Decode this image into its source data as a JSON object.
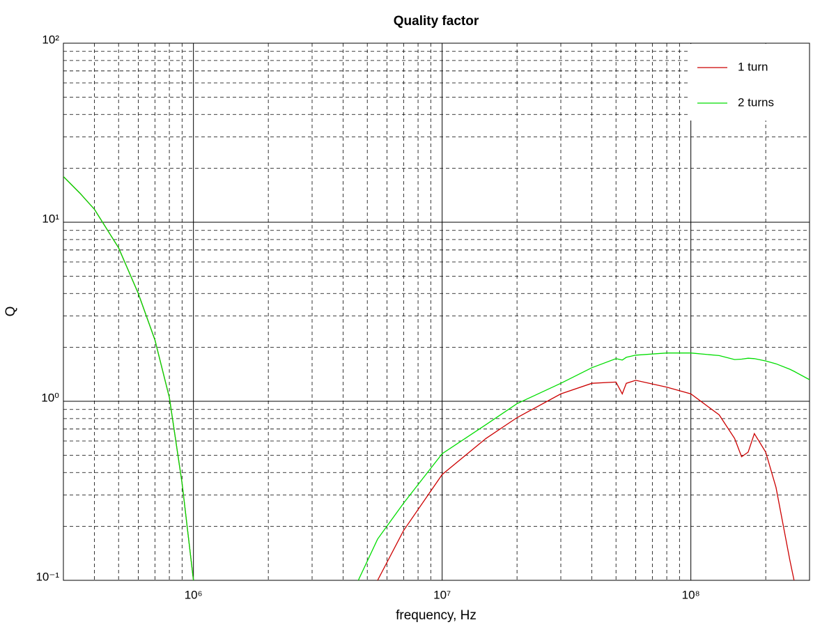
{
  "chart_data": {
    "type": "line",
    "title": "Quality factor",
    "xlabel": "frequency, Hz",
    "ylabel": "Q",
    "xscale": "log",
    "yscale": "log",
    "grid": true,
    "minor_grid": true,
    "legend": "upper right",
    "x": [
      300000,
      350000,
      400000,
      500000,
      600000,
      700000,
      800000,
      900000,
      1000000,
      2000000,
      4600000,
      5500000,
      7000000,
      10000000,
      15000000,
      20000000,
      30000000,
      40000000,
      50000000,
      53000000,
      55000000,
      60000000,
      80000000,
      100000000,
      130000000,
      150000000,
      160000000,
      170000000,
      180000000,
      200000000,
      220000000,
      250000000,
      260000000,
      300000000
    ],
    "series": [
      {
        "name": "1 turn",
        "color": "#cc0000",
        "values": [
          18,
          14.5,
          11.8,
          7.2,
          4.0,
          2.2,
          1.05,
          0.35,
          0.1,
          null,
          null,
          0.1,
          0.19,
          0.39,
          0.62,
          0.81,
          1.1,
          1.26,
          1.28,
          1.1,
          1.26,
          1.31,
          1.2,
          1.1,
          0.84,
          0.62,
          0.49,
          0.52,
          0.66,
          0.52,
          0.33,
          0.13,
          0.1,
          null
        ]
      },
      {
        "name": "2 turns",
        "color": "#00dd00",
        "values": [
          18,
          14.5,
          11.8,
          7.2,
          4.0,
          2.2,
          1.05,
          0.35,
          0.1,
          null,
          0.1,
          0.17,
          0.27,
          0.51,
          0.74,
          0.97,
          1.26,
          1.54,
          1.73,
          1.7,
          1.76,
          1.81,
          1.86,
          1.86,
          1.8,
          1.71,
          1.72,
          1.74,
          1.73,
          1.68,
          1.62,
          1.51,
          1.47,
          1.32
        ]
      }
    ],
    "xlim": [
      300000,
      300000000
    ],
    "ylim": [
      0.1,
      100
    ],
    "xticks": [
      {
        "value": 1000000,
        "label": "10⁶"
      },
      {
        "value": 10000000,
        "label": "10⁷"
      },
      {
        "value": 100000000,
        "label": "10⁸"
      }
    ],
    "yticks": [
      {
        "value": 0.1,
        "label": "10⁻¹"
      },
      {
        "value": 1,
        "label": "10⁰"
      },
      {
        "value": 10,
        "label": "10¹"
      },
      {
        "value": 100,
        "label": "10²"
      }
    ]
  }
}
